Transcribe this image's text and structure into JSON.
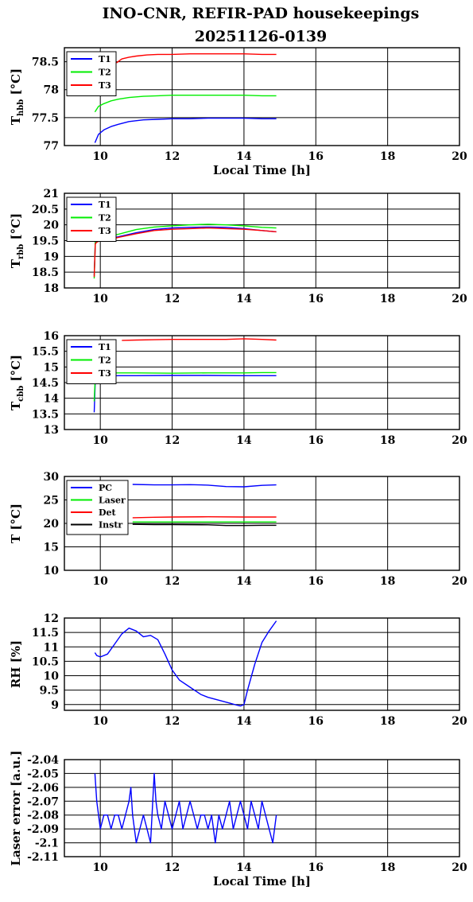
{
  "figure": {
    "title_line1": "INO-CNR, REFIR-PAD housekeepings",
    "title_line2": "20251126-0139"
  },
  "chart_data": [
    {
      "type": "line",
      "ylabel": "T",
      "ylabel_sub": "hbb",
      "ylabel_unit": "[°C]",
      "xlabel": "Local Time [h]",
      "xlim": [
        9,
        20
      ],
      "ylim": [
        77,
        78.75
      ],
      "xticks": [
        10,
        12,
        14,
        16,
        18,
        20
      ],
      "yticks": [
        77,
        77.5,
        78,
        78.5
      ],
      "ytick_labels": [
        "77",
        "77.5",
        "78",
        "78.5"
      ],
      "grid": true,
      "legend_position": "top-left",
      "series": [
        {
          "name": "T1",
          "color": "#0000ff",
          "x": [
            9.85,
            9.95,
            10.1,
            10.3,
            10.5,
            10.8,
            11.2,
            11.6,
            12.0,
            12.5,
            13.0,
            13.5,
            14.0,
            14.5,
            14.9
          ],
          "y": [
            77.05,
            77.2,
            77.28,
            77.34,
            77.38,
            77.43,
            77.46,
            77.47,
            77.48,
            77.48,
            77.49,
            77.49,
            77.49,
            77.48,
            77.48
          ]
        },
        {
          "name": "T2",
          "color": "#00ee00",
          "x": [
            9.85,
            9.95,
            10.1,
            10.3,
            10.5,
            10.8,
            11.2,
            11.6,
            12.0,
            12.5,
            13.0,
            13.5,
            14.0,
            14.5,
            14.9
          ],
          "y": [
            77.6,
            77.7,
            77.75,
            77.8,
            77.83,
            77.86,
            77.88,
            77.89,
            77.9,
            77.9,
            77.9,
            77.9,
            77.9,
            77.89,
            77.89
          ]
        },
        {
          "name": "T3",
          "color": "#ff0000",
          "x": [
            10.45,
            10.6,
            10.8,
            11.0,
            11.3,
            11.6,
            12.0,
            12.5,
            13.0,
            13.5,
            14.0,
            14.5,
            14.9
          ],
          "y": [
            78.48,
            78.55,
            78.58,
            78.6,
            78.62,
            78.63,
            78.63,
            78.64,
            78.64,
            78.64,
            78.64,
            78.63,
            78.63
          ]
        }
      ]
    },
    {
      "type": "line",
      "ylabel": "T",
      "ylabel_sub": "rbb",
      "ylabel_unit": "[°C]",
      "xlabel": "",
      "xlim": [
        9,
        20
      ],
      "ylim": [
        18,
        21
      ],
      "xticks": [
        10,
        12,
        14,
        16,
        18,
        20
      ],
      "yticks": [
        18,
        18.5,
        19,
        19.5,
        20,
        20.5,
        21
      ],
      "ytick_labels": [
        "18",
        "18.5",
        "19",
        "19.5",
        "20",
        "20.5",
        "21"
      ],
      "grid": true,
      "legend_position": "top-left",
      "series": [
        {
          "name": "T1",
          "color": "#0000ff",
          "x": [
            9.83,
            9.86,
            9.9,
            10.0,
            10.5,
            11.0,
            11.5,
            12.0,
            12.5,
            13.0,
            13.5,
            14.0,
            14.5,
            14.9
          ],
          "y": [
            18.4,
            19.45,
            19.5,
            19.52,
            19.62,
            19.75,
            19.85,
            19.9,
            19.92,
            19.93,
            19.92,
            19.88,
            19.82,
            19.78
          ]
        },
        {
          "name": "T2",
          "color": "#00ee00",
          "x": [
            9.83,
            9.86,
            9.9,
            10.0,
            10.5,
            11.0,
            11.5,
            12.0,
            12.5,
            13.0,
            13.5,
            14.0,
            14.5,
            14.9
          ],
          "y": [
            18.3,
            19.5,
            19.55,
            19.57,
            19.7,
            19.85,
            19.93,
            19.97,
            20.0,
            20.02,
            20.0,
            19.97,
            19.92,
            19.9
          ]
        },
        {
          "name": "T3",
          "color": "#ff0000",
          "x": [
            9.83,
            9.86,
            9.9,
            10.0,
            10.5,
            11.0,
            11.5,
            12.0,
            12.5,
            13.0,
            13.5,
            14.0,
            14.5,
            14.9
          ],
          "y": [
            18.35,
            19.4,
            19.45,
            19.5,
            19.6,
            19.72,
            19.82,
            19.86,
            19.88,
            19.9,
            19.88,
            19.86,
            19.82,
            19.78
          ]
        }
      ]
    },
    {
      "type": "line",
      "ylabel": "T",
      "ylabel_sub": "cbb",
      "ylabel_unit": "[°C]",
      "xlabel": "",
      "xlim": [
        9,
        20
      ],
      "ylim": [
        13,
        16
      ],
      "xticks": [
        10,
        12,
        14,
        16,
        18,
        20
      ],
      "yticks": [
        13,
        13.5,
        14,
        14.5,
        15,
        15.5,
        16
      ],
      "ytick_labels": [
        "13",
        "13.5",
        "14",
        "14.5",
        "15",
        "15.5",
        "16"
      ],
      "grid": true,
      "legend_position": "top-left",
      "series": [
        {
          "name": "T1",
          "color": "#0000ff",
          "x": [
            9.83,
            9.86,
            9.9,
            10.0,
            10.5,
            11.0,
            12.0,
            13.0,
            14.0,
            14.5,
            14.9
          ],
          "y": [
            13.55,
            14.6,
            14.68,
            14.7,
            14.72,
            14.72,
            14.73,
            14.73,
            14.72,
            14.72,
            14.72
          ]
        },
        {
          "name": "T2",
          "color": "#00ee00",
          "x": [
            9.83,
            9.86,
            9.9,
            10.0,
            10.5,
            11.0,
            12.0,
            13.0,
            14.0,
            14.5,
            14.9
          ],
          "y": [
            13.9,
            14.75,
            14.8,
            14.8,
            14.81,
            14.81,
            14.8,
            14.81,
            14.81,
            14.82,
            14.82
          ]
        },
        {
          "name": "T3",
          "color": "#ff0000",
          "x": [
            10.6,
            11.0,
            11.5,
            12.0,
            12.5,
            13.0,
            13.5,
            14.0,
            14.5,
            14.9
          ],
          "y": [
            15.85,
            15.86,
            15.87,
            15.88,
            15.88,
            15.88,
            15.88,
            15.9,
            15.88,
            15.86
          ]
        }
      ]
    },
    {
      "type": "line",
      "ylabel": "T [°C]",
      "ylabel_sub": "",
      "ylabel_unit": "",
      "xlabel": "",
      "xlim": [
        9,
        20
      ],
      "ylim": [
        10,
        30
      ],
      "xticks": [
        10,
        12,
        14,
        16,
        18,
        20
      ],
      "yticks": [
        10,
        15,
        20,
        25,
        30
      ],
      "ytick_labels": [
        "10",
        "15",
        "20",
        "25",
        "30"
      ],
      "grid": true,
      "legend_position": "top-left",
      "series": [
        {
          "name": "PC",
          "color": "#0000ff",
          "x": [
            10.9,
            11.5,
            12.0,
            12.5,
            13.0,
            13.5,
            14.0,
            14.5,
            14.9
          ],
          "y": [
            28.3,
            28.2,
            28.2,
            28.25,
            28.15,
            27.85,
            27.8,
            28.1,
            28.2
          ]
        },
        {
          "name": "Laser",
          "color": "#00ee00",
          "x": [
            10.9,
            11.5,
            12.0,
            13.0,
            14.0,
            14.5,
            14.9
          ],
          "y": [
            20.3,
            20.3,
            20.3,
            20.3,
            20.3,
            20.3,
            20.3
          ]
        },
        {
          "name": "Det",
          "color": "#ff0000",
          "x": [
            10.9,
            11.5,
            12.0,
            13.0,
            14.0,
            14.5,
            14.9
          ],
          "y": [
            21.2,
            21.3,
            21.35,
            21.4,
            21.35,
            21.35,
            21.35
          ]
        },
        {
          "name": "Instr",
          "color": "#000000",
          "x": [
            10.9,
            11.5,
            12.0,
            13.0,
            13.5,
            14.0,
            14.5,
            14.9
          ],
          "y": [
            19.8,
            19.75,
            19.75,
            19.7,
            19.55,
            19.55,
            19.6,
            19.6
          ]
        }
      ]
    },
    {
      "type": "line",
      "ylabel": "RH [%]",
      "ylabel_sub": "",
      "ylabel_unit": "",
      "xlabel": "",
      "xlim": [
        9,
        20
      ],
      "ylim": [
        8.8,
        12
      ],
      "xticks": [
        10,
        12,
        14,
        16,
        18,
        20
      ],
      "yticks": [
        9,
        9.5,
        10,
        10.5,
        11,
        11.5,
        12
      ],
      "ytick_labels": [
        "9",
        "9.5",
        "10",
        "10.5",
        "11",
        "11.5",
        "12"
      ],
      "grid": true,
      "legend_position": "none",
      "series": [
        {
          "color": "#0000ff",
          "x": [
            9.85,
            9.9,
            10.0,
            10.2,
            10.4,
            10.6,
            10.8,
            11.0,
            11.2,
            11.4,
            11.6,
            11.8,
            12.0,
            12.2,
            12.5,
            12.8,
            13.0,
            13.3,
            13.6,
            13.8,
            13.9,
            14.0,
            14.1,
            14.3,
            14.5,
            14.7,
            14.9
          ],
          "y": [
            10.8,
            10.7,
            10.65,
            10.75,
            11.1,
            11.45,
            11.65,
            11.55,
            11.35,
            11.4,
            11.25,
            10.75,
            10.2,
            9.85,
            9.6,
            9.35,
            9.25,
            9.15,
            9.05,
            8.98,
            8.95,
            9.0,
            9.5,
            10.4,
            11.15,
            11.55,
            11.9
          ]
        }
      ]
    },
    {
      "type": "line",
      "ylabel": "Laser error [a.u.]",
      "ylabel_sub": "",
      "ylabel_unit": "",
      "xlabel": "Local Time [h]",
      "xlim": [
        9,
        20
      ],
      "ylim": [
        -2.11,
        -2.04
      ],
      "xticks": [
        10,
        12,
        14,
        16,
        18,
        20
      ],
      "yticks": [
        -2.11,
        -2.1,
        -2.09,
        -2.08,
        -2.07,
        -2.06,
        -2.05,
        -2.04
      ],
      "ytick_labels": [
        "-2.11",
        "-2.1",
        "-2.09",
        "-2.08",
        "-2.07",
        "-2.06",
        "-2.05",
        "-2.04"
      ],
      "grid": true,
      "legend_position": "none",
      "series": [
        {
          "color": "#0000ff",
          "x": [
            9.85,
            9.9,
            10.0,
            10.1,
            10.2,
            10.3,
            10.4,
            10.5,
            10.6,
            10.7,
            10.8,
            10.85,
            10.9,
            11.0,
            11.1,
            11.2,
            11.3,
            11.4,
            11.5,
            11.55,
            11.6,
            11.7,
            11.8,
            11.9,
            12.0,
            12.1,
            12.2,
            12.3,
            12.4,
            12.5,
            12.6,
            12.7,
            12.8,
            12.9,
            13.0,
            13.1,
            13.2,
            13.3,
            13.4,
            13.5,
            13.6,
            13.7,
            13.8,
            13.9,
            14.0,
            14.1,
            14.2,
            14.3,
            14.4,
            14.5,
            14.6,
            14.7,
            14.8,
            14.9
          ],
          "y": [
            -2.05,
            -2.07,
            -2.09,
            -2.08,
            -2.08,
            -2.09,
            -2.08,
            -2.08,
            -2.09,
            -2.08,
            -2.07,
            -2.06,
            -2.08,
            -2.1,
            -2.09,
            -2.08,
            -2.09,
            -2.1,
            -2.05,
            -2.07,
            -2.08,
            -2.09,
            -2.07,
            -2.08,
            -2.09,
            -2.08,
            -2.07,
            -2.09,
            -2.08,
            -2.07,
            -2.08,
            -2.09,
            -2.08,
            -2.08,
            -2.09,
            -2.08,
            -2.1,
            -2.08,
            -2.09,
            -2.08,
            -2.07,
            -2.09,
            -2.08,
            -2.07,
            -2.08,
            -2.09,
            -2.07,
            -2.08,
            -2.09,
            -2.07,
            -2.08,
            -2.09,
            -2.1,
            -2.08
          ]
        }
      ]
    }
  ]
}
